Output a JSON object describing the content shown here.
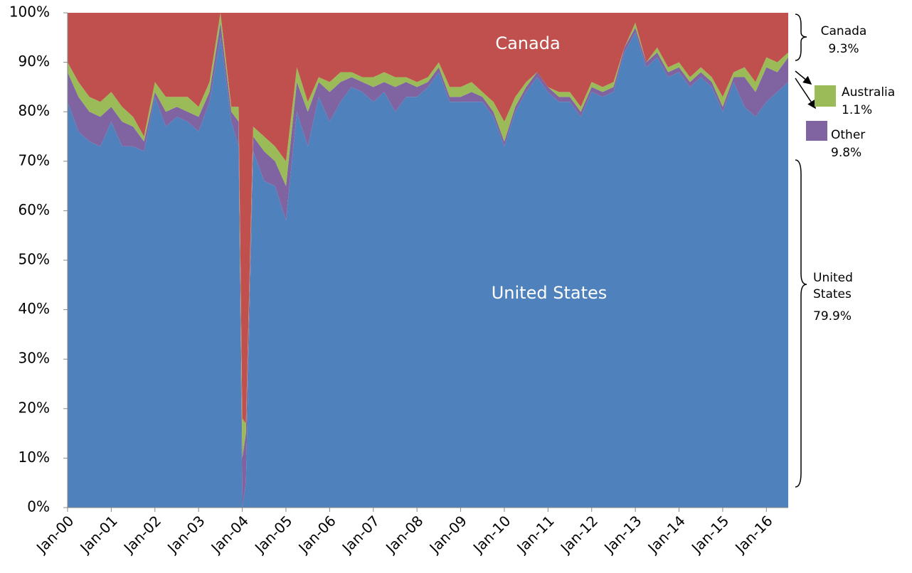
{
  "chart_data": {
    "type": "stacked_area",
    "x": [
      "Jan-00",
      "Apr-00",
      "Jul-00",
      "Oct-00",
      "Jan-01",
      "Apr-01",
      "Jul-01",
      "Oct-01",
      "Jan-02",
      "Apr-02",
      "Jul-02",
      "Oct-02",
      "Jan-03",
      "Apr-03",
      "Jul-03",
      "Oct-03",
      "Dec-03",
      "Jan-04",
      "Feb-04",
      "Apr-04",
      "Jul-04",
      "Oct-04",
      "Jan-05",
      "Apr-05",
      "Jul-05",
      "Oct-05",
      "Jan-06",
      "Apr-06",
      "Jul-06",
      "Oct-06",
      "Jan-07",
      "Apr-07",
      "Jul-07",
      "Oct-07",
      "Jan-08",
      "Apr-08",
      "Jul-08",
      "Oct-08",
      "Jan-09",
      "Apr-09",
      "Jul-09",
      "Oct-09",
      "Jan-10",
      "Apr-10",
      "Jul-10",
      "Oct-10",
      "Jan-11",
      "Apr-11",
      "Jul-11",
      "Oct-11",
      "Jan-12",
      "Apr-12",
      "Jul-12",
      "Oct-12",
      "Jan-13",
      "Apr-13",
      "Jul-13",
      "Oct-13",
      "Jan-14",
      "Apr-14",
      "Jul-14",
      "Oct-14",
      "Jan-15",
      "Apr-15",
      "Jul-15",
      "Oct-15",
      "Jan-16",
      "Apr-16",
      "Jul-16"
    ],
    "series": [
      {
        "name": "United States",
        "color": "#4f81bd",
        "values": [
          82,
          76,
          74,
          73,
          78,
          73,
          73,
          72,
          83,
          77,
          79,
          78,
          76,
          82,
          95,
          78,
          73,
          0,
          5,
          72,
          66,
          65,
          58,
          80,
          73,
          83,
          78,
          82,
          85,
          84,
          82,
          84,
          80,
          83,
          83,
          85,
          88,
          82,
          82,
          82,
          82,
          79,
          73,
          80,
          84,
          87,
          84,
          82,
          82,
          79,
          84,
          83,
          84,
          92,
          96,
          89,
          91,
          87,
          88,
          85,
          87,
          85,
          80,
          86,
          81,
          79,
          82,
          84,
          86
        ]
      },
      {
        "name": "Other",
        "color": "#8064a2",
        "values": [
          6,
          7,
          6,
          6,
          3,
          5,
          4,
          2,
          1,
          3,
          2,
          2,
          3,
          2,
          3,
          2,
          5,
          10,
          10,
          3,
          6,
          5,
          7,
          6,
          7,
          3,
          6,
          4,
          2,
          2,
          3,
          2,
          5,
          3,
          2,
          1,
          1,
          1,
          1,
          2,
          1,
          1,
          1,
          1,
          1,
          1,
          1,
          1,
          1,
          1,
          1,
          1,
          1,
          1,
          1,
          1,
          1,
          1,
          1,
          1,
          1,
          1,
          1,
          1,
          6,
          5,
          7,
          4,
          5
        ]
      },
      {
        "name": "Australia",
        "color": "#9bbb59",
        "values": [
          2,
          3,
          3,
          3,
          3,
          3,
          2,
          1,
          2,
          3,
          2,
          3,
          2,
          2,
          2,
          1,
          3,
          8,
          2,
          2,
          3,
          3,
          5,
          3,
          2,
          1,
          2,
          2,
          1,
          1,
          2,
          2,
          2,
          1,
          1,
          1,
          1,
          2,
          2,
          2,
          1,
          2,
          4,
          2,
          1,
          0,
          0,
          1,
          1,
          1,
          1,
          1,
          1,
          0,
          1,
          0,
          1,
          1,
          1,
          1,
          1,
          1,
          2,
          1,
          2,
          2,
          2,
          2,
          1
        ]
      },
      {
        "name": "Canada",
        "color": "#c0504d",
        "values": [
          10,
          14,
          17,
          18,
          16,
          19,
          21,
          25,
          14,
          17,
          17,
          17,
          19,
          14,
          0,
          19,
          19,
          82,
          83,
          23,
          25,
          27,
          30,
          11,
          18,
          13,
          14,
          12,
          12,
          13,
          13,
          12,
          13,
          13,
          14,
          13,
          10,
          15,
          15,
          14,
          16,
          18,
          22,
          17,
          14,
          12,
          15,
          16,
          16,
          19,
          14,
          15,
          14,
          7,
          2,
          10,
          7,
          11,
          10,
          13,
          11,
          13,
          17,
          12,
          11,
          14,
          9,
          10,
          8
        ]
      }
    ],
    "xlim": [
      "Jan-00",
      "Jul-16"
    ],
    "xticks": [
      "Jan-00",
      "Jan-01",
      "Jan-02",
      "Jan-03",
      "Jan-04",
      "Jan-05",
      "Jan-06",
      "Jan-07",
      "Jan-08",
      "Jan-09",
      "Jan-10",
      "Jan-11",
      "Jan-12",
      "Jan-13",
      "Jan-14",
      "Jan-15",
      "Jan-16"
    ],
    "ylim": [
      0,
      100
    ],
    "yticks": [
      {
        "value": 0,
        "label": "0%"
      },
      {
        "value": 10,
        "label": "10%"
      },
      {
        "value": 20,
        "label": "20%"
      },
      {
        "value": 30,
        "label": "30%"
      },
      {
        "value": 40,
        "label": "40%"
      },
      {
        "value": 50,
        "label": "50%"
      },
      {
        "value": 60,
        "label": "60%"
      },
      {
        "value": 70,
        "label": "70%"
      },
      {
        "value": 80,
        "label": "80%"
      },
      {
        "value": 90,
        "label": "90%"
      },
      {
        "value": 100,
        "label": "100%"
      }
    ],
    "annotations": [
      "Canada",
      "United States"
    ],
    "side_labels": [
      {
        "name": "Canada",
        "share": "9.3%"
      },
      {
        "name": "Australia",
        "share": "1.1%"
      },
      {
        "name": "Other",
        "share": "9.8%"
      },
      {
        "name": "United States",
        "share": "79.9%"
      }
    ]
  }
}
